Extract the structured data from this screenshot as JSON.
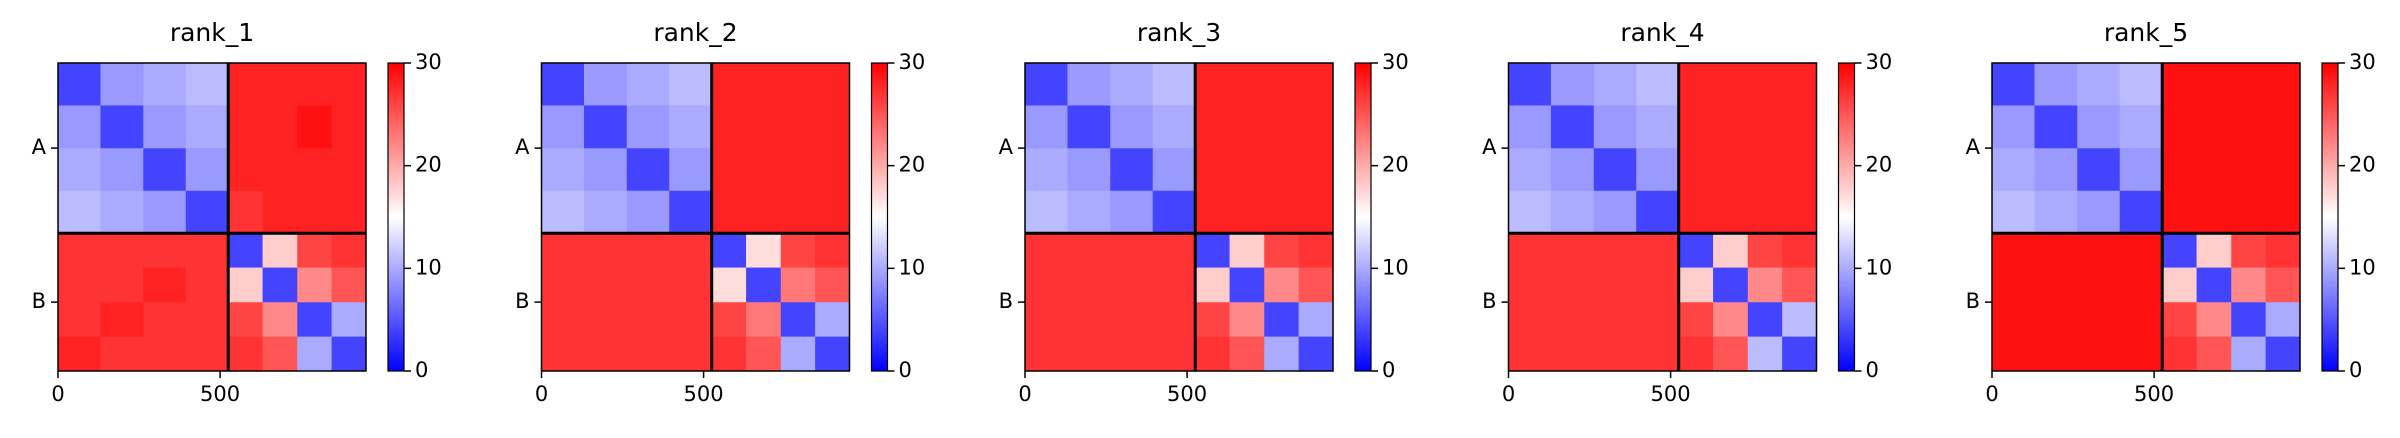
{
  "chart_data": [
    {
      "type": "heatmap",
      "title": "rank_1",
      "colormap": "bwr",
      "clim": [
        0,
        30
      ],
      "cticks": [
        0,
        10,
        20,
        30
      ],
      "xlim": [
        0,
        950
      ],
      "xticks": [
        0,
        500
      ],
      "chains": [
        "A",
        "B"
      ],
      "chain_breaks": [
        525
      ],
      "edges": [
        0,
        131,
        263,
        394,
        525,
        631,
        738,
        844,
        950
      ],
      "matrix": [
        [
          4,
          9,
          10,
          11,
          28,
          28,
          28,
          28
        ],
        [
          9,
          4,
          9,
          10,
          28,
          28,
          29,
          28
        ],
        [
          10,
          9,
          4,
          9,
          28,
          28,
          28,
          28
        ],
        [
          11,
          10,
          9,
          4,
          27,
          28,
          28,
          28
        ],
        [
          27,
          27,
          27,
          27,
          4,
          18,
          26,
          27
        ],
        [
          27,
          27,
          28,
          27,
          18,
          4,
          22,
          25
        ],
        [
          27,
          28,
          27,
          27,
          26,
          22,
          4,
          10
        ],
        [
          28,
          27,
          27,
          27,
          27,
          25,
          10,
          4
        ]
      ]
    },
    {
      "type": "heatmap",
      "title": "rank_2",
      "colormap": "bwr",
      "clim": [
        0,
        30
      ],
      "cticks": [
        0,
        10,
        20,
        30
      ],
      "xlim": [
        0,
        950
      ],
      "xticks": [
        0,
        500
      ],
      "chains": [
        "A",
        "B"
      ],
      "chain_breaks": [
        525
      ],
      "edges": [
        0,
        131,
        263,
        394,
        525,
        631,
        738,
        844,
        950
      ],
      "matrix": [
        [
          4,
          9,
          10,
          11,
          28,
          28,
          28,
          28
        ],
        [
          9,
          4,
          9,
          10,
          28,
          28,
          28,
          28
        ],
        [
          10,
          9,
          4,
          9,
          28,
          28,
          28,
          28
        ],
        [
          11,
          10,
          9,
          4,
          28,
          28,
          28,
          28
        ],
        [
          27,
          27,
          27,
          27,
          4,
          17,
          26,
          27
        ],
        [
          27,
          27,
          27,
          27,
          17,
          4,
          23,
          25
        ],
        [
          27,
          27,
          27,
          27,
          26,
          23,
          4,
          10
        ],
        [
          27,
          27,
          27,
          27,
          27,
          25,
          10,
          4
        ]
      ]
    },
    {
      "type": "heatmap",
      "title": "rank_3",
      "colormap": "bwr",
      "clim": [
        0,
        30
      ],
      "cticks": [
        0,
        10,
        20,
        30
      ],
      "xlim": [
        0,
        950
      ],
      "xticks": [
        0,
        500
      ],
      "chains": [
        "A",
        "B"
      ],
      "chain_breaks": [
        525
      ],
      "edges": [
        0,
        131,
        263,
        394,
        525,
        631,
        738,
        844,
        950
      ],
      "matrix": [
        [
          4,
          9,
          10,
          11,
          28,
          28,
          28,
          28
        ],
        [
          9,
          4,
          9,
          10,
          28,
          28,
          28,
          28
        ],
        [
          10,
          9,
          4,
          9,
          28,
          28,
          28,
          28
        ],
        [
          11,
          10,
          9,
          4,
          28,
          28,
          28,
          28
        ],
        [
          27,
          27,
          27,
          27,
          4,
          18,
          26,
          27
        ],
        [
          27,
          27,
          27,
          27,
          18,
          4,
          22,
          25
        ],
        [
          27,
          27,
          27,
          27,
          26,
          22,
          4,
          10
        ],
        [
          27,
          27,
          27,
          27,
          27,
          25,
          10,
          4
        ]
      ]
    },
    {
      "type": "heatmap",
      "title": "rank_4",
      "colormap": "bwr",
      "clim": [
        0,
        30
      ],
      "cticks": [
        0,
        10,
        20,
        30
      ],
      "xlim": [
        0,
        950
      ],
      "xticks": [
        0,
        500
      ],
      "chains": [
        "A",
        "B"
      ],
      "chain_breaks": [
        525
      ],
      "edges": [
        0,
        131,
        263,
        394,
        525,
        631,
        738,
        844,
        950
      ],
      "matrix": [
        [
          4,
          9,
          10,
          11,
          28,
          28,
          28,
          28
        ],
        [
          9,
          4,
          9,
          10,
          28,
          28,
          28,
          28
        ],
        [
          10,
          9,
          4,
          9,
          28,
          28,
          28,
          28
        ],
        [
          11,
          10,
          9,
          4,
          28,
          28,
          28,
          28
        ],
        [
          27,
          27,
          27,
          27,
          4,
          18,
          26,
          27
        ],
        [
          27,
          27,
          27,
          27,
          18,
          4,
          22,
          25
        ],
        [
          27,
          27,
          27,
          27,
          26,
          22,
          4,
          11
        ],
        [
          27,
          27,
          27,
          27,
          27,
          25,
          11,
          4
        ]
      ]
    },
    {
      "type": "heatmap",
      "title": "rank_5",
      "colormap": "bwr",
      "clim": [
        0,
        30
      ],
      "cticks": [
        0,
        10,
        20,
        30
      ],
      "xlim": [
        0,
        950
      ],
      "xticks": [
        0,
        500
      ],
      "chains": [
        "A",
        "B"
      ],
      "chain_breaks": [
        525
      ],
      "edges": [
        0,
        131,
        263,
        394,
        525,
        631,
        738,
        844,
        950
      ],
      "matrix": [
        [
          4,
          9,
          10,
          11,
          29,
          29,
          29,
          29
        ],
        [
          9,
          4,
          9,
          10,
          29,
          29,
          29,
          29
        ],
        [
          10,
          9,
          4,
          9,
          29,
          29,
          29,
          29
        ],
        [
          11,
          10,
          9,
          4,
          29,
          29,
          29,
          29
        ],
        [
          29,
          29,
          29,
          29,
          4,
          18,
          26,
          27
        ],
        [
          29,
          29,
          29,
          29,
          18,
          4,
          22,
          25
        ],
        [
          29,
          29,
          29,
          29,
          26,
          22,
          4,
          10
        ],
        [
          29,
          29,
          29,
          29,
          27,
          25,
          10,
          4
        ]
      ]
    }
  ]
}
